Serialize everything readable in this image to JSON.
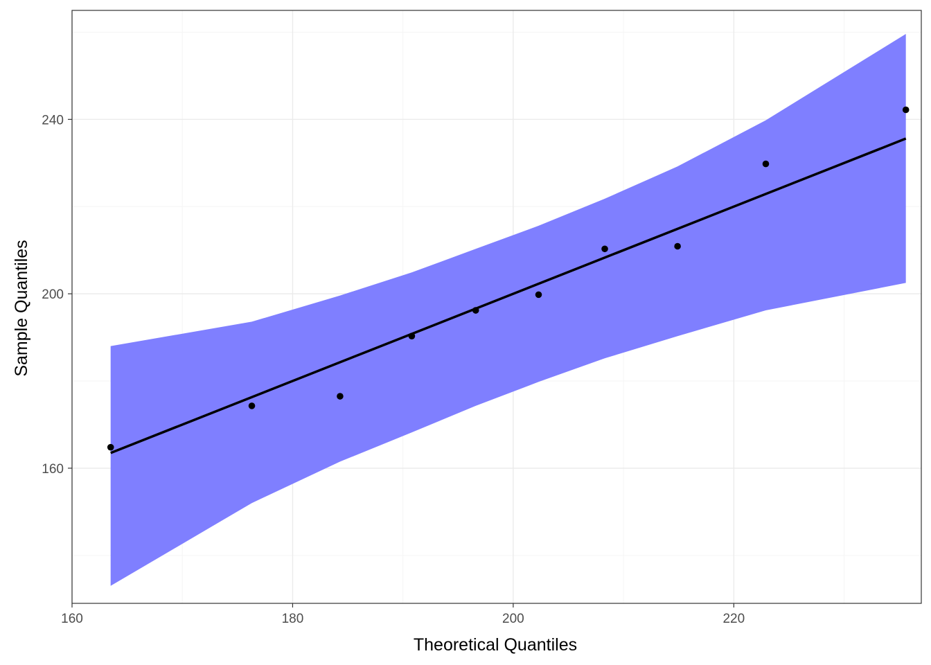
{
  "chart_data": {
    "type": "scatter",
    "title": "",
    "xlabel": "Theoretical Quantiles",
    "ylabel": "Sample Quantiles",
    "xlim": [
      160,
      237
    ],
    "ylim": [
      129,
      265
    ],
    "x_ticks": [
      160,
      180,
      200,
      220
    ],
    "y_ticks": [
      160,
      200,
      240
    ],
    "grid": true,
    "legend": "none",
    "points": {
      "x": [
        163.5,
        176.3,
        184.3,
        190.8,
        196.6,
        202.3,
        208.3,
        214.9,
        222.9,
        235.6
      ],
      "y": [
        164.8,
        174.3,
        176.5,
        190.3,
        196.2,
        199.8,
        210.3,
        210.9,
        229.8,
        242.2
      ]
    },
    "reference_line": {
      "x": [
        163.5,
        235.6
      ],
      "y": [
        163.5,
        235.6
      ]
    },
    "confidence_band": {
      "x": [
        163.5,
        176.3,
        184.3,
        190.8,
        196.6,
        202.3,
        208.3,
        214.9,
        222.9,
        235.6
      ],
      "lower": [
        133.0,
        152.0,
        161.5,
        168.2,
        174.3,
        179.8,
        185.2,
        190.3,
        196.2,
        202.5
      ],
      "upper": [
        188.0,
        193.6,
        199.6,
        204.9,
        210.3,
        215.6,
        221.8,
        229.2,
        239.8,
        259.6
      ]
    },
    "colors": {
      "band": "#7f7fff",
      "points": "#000000",
      "line": "#000000",
      "grid_major": "#ebebeb",
      "grid_minor": "#f5f5f5",
      "panel_border": "#333333"
    }
  }
}
